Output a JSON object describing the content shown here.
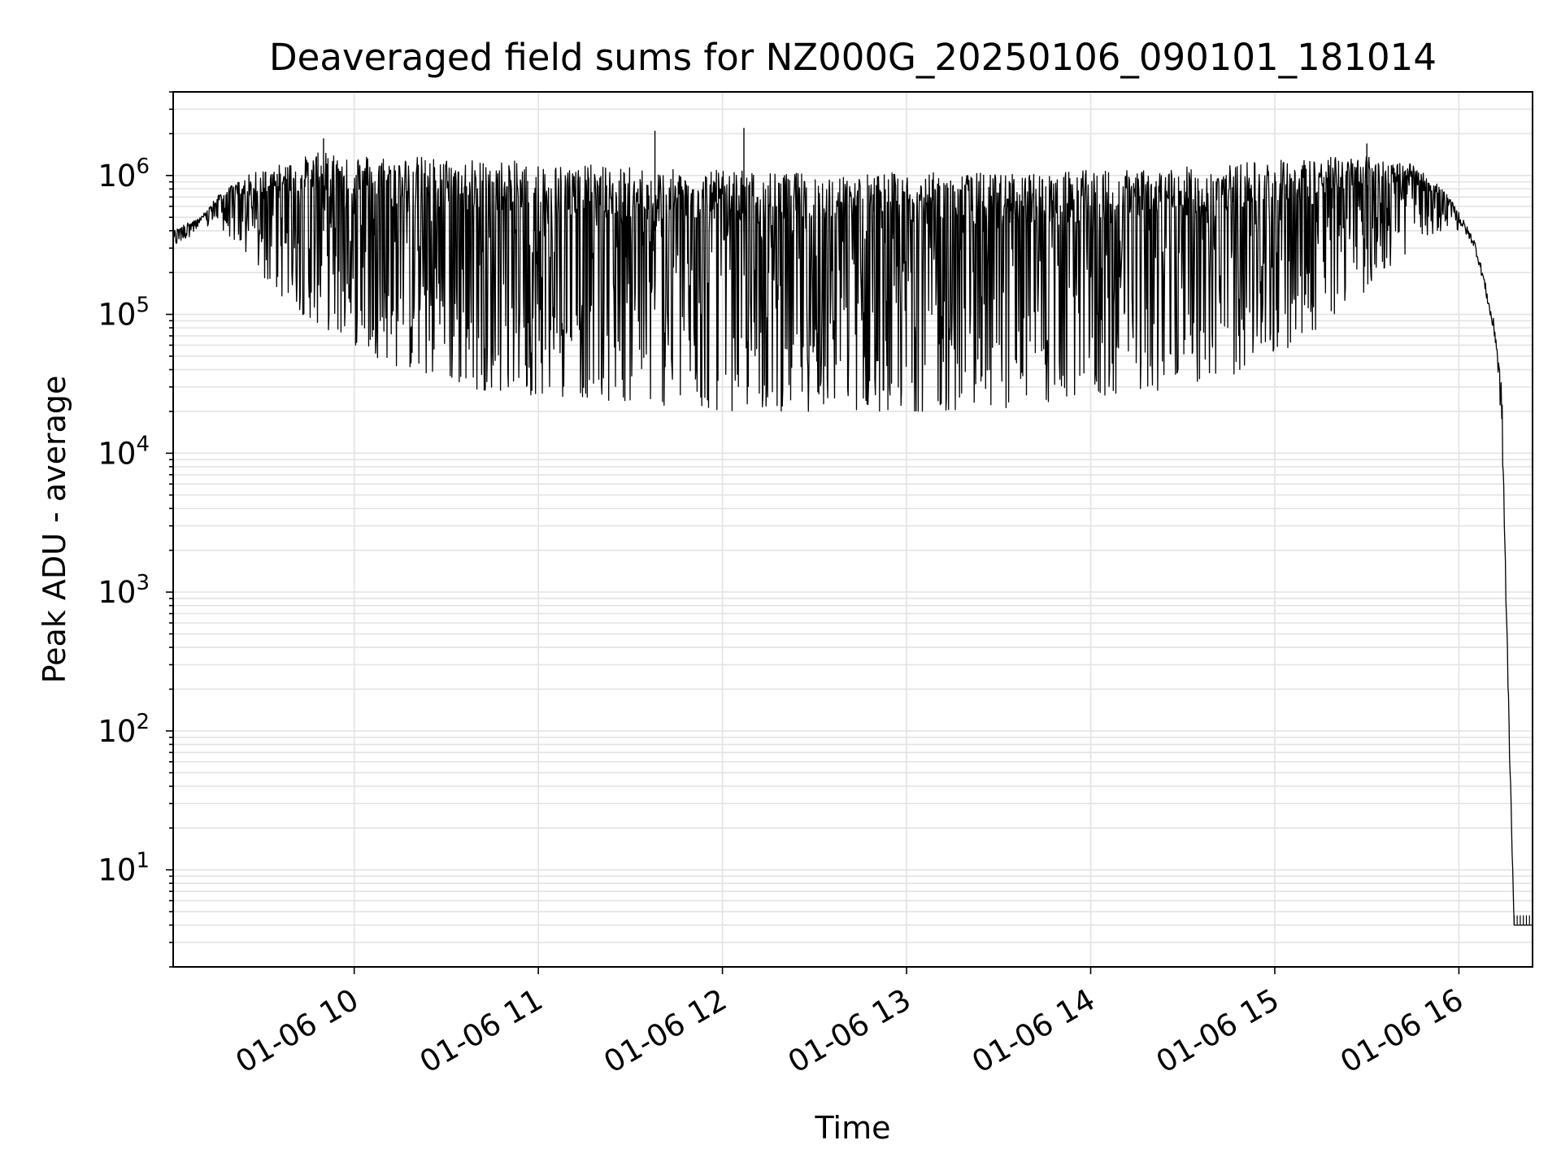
{
  "chart_data": {
    "type": "line",
    "title": "Deaveraged field sums for NZ000G_20250106_090101_181014",
    "xlabel": "Time",
    "ylabel": "Peak ADU - average",
    "y_scale": "log",
    "ylim": [
      2,
      4000000
    ],
    "xlim": [
      "01-06 09:01",
      "01-06 16:24"
    ],
    "x_ticks": [
      "01-06 10",
      "01-06 11",
      "01-06 12",
      "01-06 13",
      "01-06 14",
      "01-06 15",
      "01-06 16"
    ],
    "y_ticks": [
      {
        "base": "10",
        "exp": "1",
        "value": 10
      },
      {
        "base": "10",
        "exp": "2",
        "value": 100
      },
      {
        "base": "10",
        "exp": "3",
        "value": 1000
      },
      {
        "base": "10",
        "exp": "4",
        "value": 10000
      },
      {
        "base": "10",
        "exp": "5",
        "value": 100000
      },
      {
        "base": "10",
        "exp": "6",
        "value": 1000000
      }
    ],
    "grid": true,
    "line_color": "#000000",
    "grid_color": "#e3e3e3",
    "series": [
      {
        "x": [
          "01-06 09:01",
          "01-06 09:05",
          "01-06 09:10",
          "01-06 09:15",
          "01-06 09:20",
          "01-06 09:25",
          "01-06 09:30",
          "01-06 09:40",
          "01-06 09:50",
          "01-06 10:00",
          "01-06 10:15",
          "01-06 10:30",
          "01-06 10:45",
          "01-06 11:00",
          "01-06 11:15",
          "01-06 11:30",
          "01-06 11:45",
          "01-06 12:00",
          "01-06 12:15",
          "01-06 12:30",
          "01-06 12:45",
          "01-06 13:00",
          "01-06 13:15",
          "01-06 13:30",
          "01-06 13:45",
          "01-06 14:00",
          "01-06 14:15",
          "01-06 14:30",
          "01-06 14:45",
          "01-06 15:00",
          "01-06 15:15",
          "01-06 15:30",
          "01-06 15:45",
          "01-06 15:55",
          "01-06 16:00",
          "01-06 16:05",
          "01-06 16:08",
          "01-06 16:10",
          "01-06 16:12",
          "01-06 16:14",
          "01-06 16:15",
          "01-06 16:16",
          "01-06 16:18",
          "01-06 16:24"
        ],
        "upper": [
          400000,
          450000,
          500000,
          700000,
          850000,
          1000000,
          1100000,
          1300000,
          1500000,
          1450000,
          1400000,
          1350000,
          1300000,
          1250000,
          1200000,
          1150000,
          1100000,
          1100000,
          1050000,
          1050000,
          1050000,
          1050000,
          1050000,
          1050000,
          1050000,
          1100000,
          1100000,
          1150000,
          1200000,
          1300000,
          1350000,
          1400000,
          1200000,
          800000,
          550000,
          350000,
          200000,
          120000,
          80000,
          30000,
          3000,
          300,
          4,
          4
        ],
        "lower": [
          300000,
          350000,
          400000,
          450000,
          350000,
          250000,
          180000,
          110000,
          80000,
          60000,
          40000,
          30000,
          28000,
          26000,
          25000,
          23000,
          21000,
          20000,
          20000,
          20000,
          20000,
          20000,
          20000,
          21000,
          22000,
          24000,
          27000,
          30000,
          35000,
          50000,
          80000,
          150000,
          300000,
          400000,
          400000,
          280000,
          150000,
          90000,
          50000,
          10000,
          1000,
          100,
          4,
          4
        ],
        "spikes": [
          {
            "x": "01-06 11:38",
            "y": 2100000
          },
          {
            "x": "01-06 12:07",
            "y": 2200000
          },
          {
            "x": "01-06 15:30",
            "y": 1700000
          },
          {
            "x": "01-06 09:50",
            "y": 1850000
          }
        ]
      }
    ]
  }
}
